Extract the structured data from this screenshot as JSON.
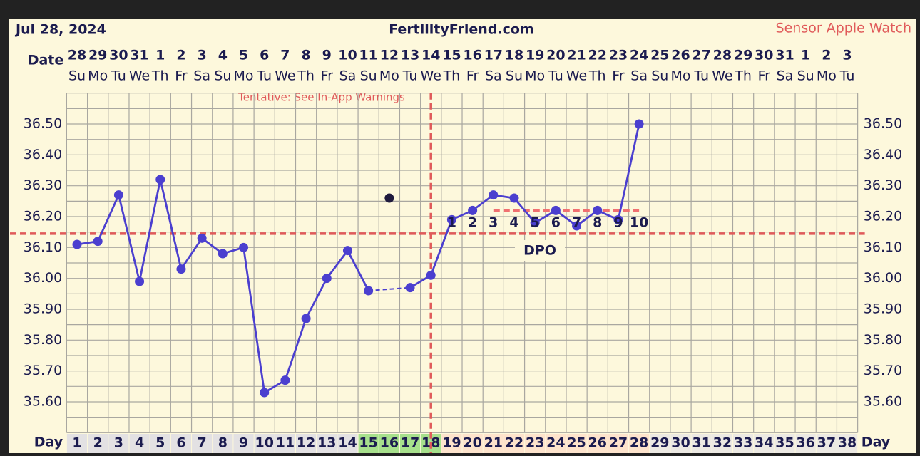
{
  "chart_data": {
    "type": "line",
    "title": "FertilityFriend.com",
    "subtitle": "Jul 28, 2024",
    "source_label": "Sensor Apple Watch",
    "annotation": "Tentative: See In-App Warnings",
    "date_label": "Date",
    "day_label": "Day",
    "dpo_label": "DPO",
    "dates": [
      "28",
      "29",
      "30",
      "31",
      "1",
      "2",
      "3",
      "4",
      "5",
      "6",
      "7",
      "8",
      "9",
      "10",
      "11",
      "12",
      "13",
      "14",
      "15",
      "16",
      "17",
      "18",
      "19",
      "20",
      "21",
      "22",
      "23",
      "24",
      "25",
      "26",
      "27",
      "28",
      "29",
      "30",
      "31",
      "1",
      "2",
      "3"
    ],
    "weekdays": [
      "Su",
      "Mo",
      "Tu",
      "We",
      "Th",
      "Fr",
      "Sa",
      "Su",
      "Mo",
      "Tu",
      "We",
      "Th",
      "Fr",
      "Sa",
      "Su",
      "Mo",
      "Tu",
      "We",
      "Th",
      "Fr",
      "Sa",
      "Su",
      "Mo",
      "Tu",
      "We",
      "Th",
      "Fr",
      "Sa",
      "Su",
      "Mo",
      "Tu",
      "We",
      "Th",
      "Fr",
      "Sa",
      "Su",
      "Mo",
      "Tu"
    ],
    "days": [
      1,
      2,
      3,
      4,
      5,
      6,
      7,
      8,
      9,
      10,
      11,
      12,
      13,
      14,
      15,
      16,
      17,
      18,
      19,
      20,
      21,
      22,
      23,
      24,
      25,
      26,
      27,
      28,
      29,
      30,
      31,
      32,
      33,
      34,
      35,
      36,
      37,
      38
    ],
    "day_colors": [
      "#e3e1e3",
      "#e3e1e3",
      "#e3e1e3",
      "#e3e1e3",
      "#e3e1e3",
      "#e3e1e3",
      "#e3e1e3",
      "#e3e1e3",
      "#e3e1e3",
      "#e3e1e3",
      "#e3e1e3",
      "#e3e1e3",
      "#e3e1e3",
      "#e3e1e3",
      "#a7e08c",
      "#a7e08c",
      "#a7e08c",
      "#a7e08c",
      "#fde3cc",
      "#fde3cc",
      "#fde3cc",
      "#fde3cc",
      "#fde3cc",
      "#fde3cc",
      "#fde3cc",
      "#fde3cc",
      "#fde3cc",
      "#fde3cc",
      "#ece9e3",
      "#ece9e3",
      "#ece9e3",
      "#ece9e3",
      "#ece9e3",
      "#ece9e3",
      "#ece9e3",
      "#ece9e3",
      "#ece9e3",
      "#ece9e3"
    ],
    "values": [
      36.11,
      36.12,
      36.27,
      35.99,
      36.32,
      36.03,
      36.13,
      36.08,
      36.1,
      35.63,
      35.67,
      35.87,
      36.0,
      36.09,
      35.96,
      null,
      35.97,
      36.01,
      36.19,
      36.22,
      36.27,
      36.26,
      36.18,
      36.22,
      36.17,
      36.22,
      36.19,
      36.5,
      null,
      null,
      null,
      null,
      null,
      null,
      null,
      null,
      null,
      null
    ],
    "excluded_values": [
      null,
      null,
      null,
      null,
      null,
      null,
      null,
      null,
      null,
      null,
      null,
      null,
      null,
      null,
      null,
      36.26,
      null,
      null,
      null,
      null,
      null,
      null,
      null,
      null,
      null,
      null,
      null,
      null,
      null,
      null,
      null,
      null,
      null,
      null,
      null,
      null,
      null,
      null
    ],
    "dpo": [
      null,
      null,
      null,
      null,
      null,
      null,
      null,
      null,
      null,
      null,
      null,
      null,
      null,
      null,
      null,
      null,
      null,
      null,
      1,
      2,
      3,
      4,
      5,
      6,
      7,
      8,
      9,
      10,
      null,
      null,
      null,
      null,
      null,
      null,
      null,
      null,
      null,
      null
    ],
    "color": "#4b3fcf",
    "excluded_color": "#1f1a3d",
    "coverline": 36.145,
    "ovulation_day": 18,
    "luteal_line": {
      "value": 36.22,
      "from_day": 21,
      "to_day": 28
    },
    "ylim": [
      35.5,
      36.6
    ],
    "yticks": [
      {
        "value": 35.6,
        "label": "35.60"
      },
      {
        "value": 35.7,
        "label": "35.70"
      },
      {
        "value": 35.8,
        "label": "35.80"
      },
      {
        "value": 35.9,
        "label": "35.90"
      },
      {
        "value": 36.0,
        "label": "36.00"
      },
      {
        "value": 36.1,
        "label": "36.10"
      },
      {
        "value": 36.2,
        "label": "36.20"
      },
      {
        "value": 36.3,
        "label": "36.30"
      },
      {
        "value": 36.4,
        "label": "36.40"
      },
      {
        "value": 36.5,
        "label": "36.50"
      }
    ],
    "minor_yticks": [
      35.5,
      35.55,
      35.65,
      35.75,
      35.85,
      35.95,
      36.05,
      36.15,
      36.25,
      36.35,
      36.45,
      36.55,
      36.6
    ],
    "grid": true
  }
}
